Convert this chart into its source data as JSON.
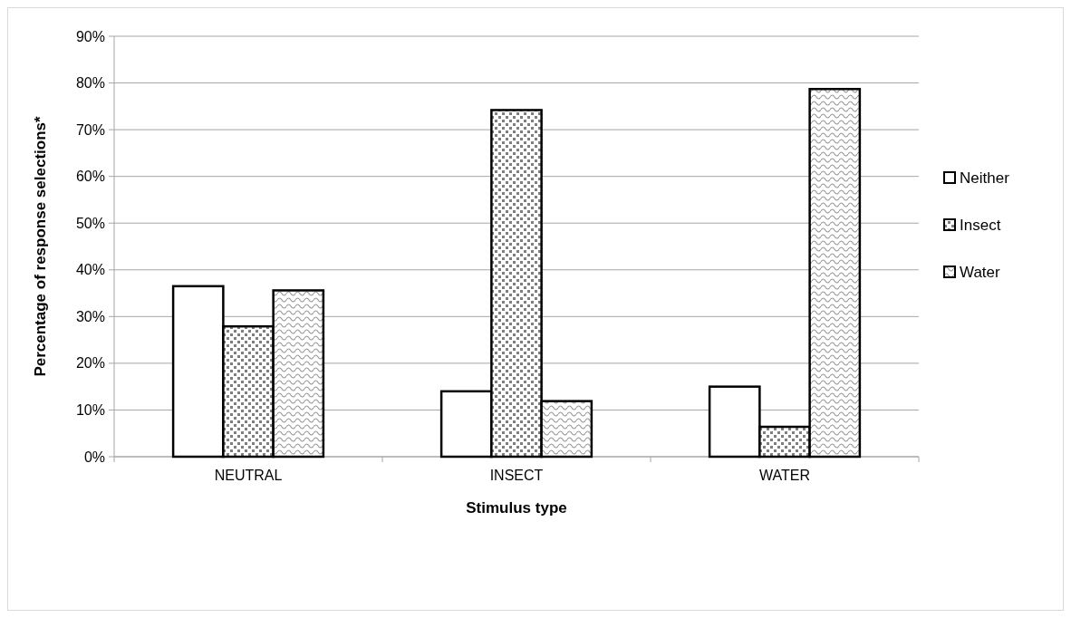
{
  "chart_data": {
    "type": "bar",
    "xlabel": "Stimulus type",
    "ylabel": "Percentage of response selections*",
    "categories": [
      "NEUTRAL",
      "INSECT",
      "WATER"
    ],
    "series": [
      {
        "name": "Neither",
        "color": "#ffffff",
        "values": [
          36.5,
          14.0,
          15.0
        ]
      },
      {
        "name": "Insect",
        "color": "#000000",
        "values": [
          27.9,
          74.2,
          6.4
        ]
      },
      {
        "name": "Water",
        "color": "#000000",
        "values": [
          35.6,
          11.9,
          78.7
        ]
      }
    ],
    "ylim": [
      0,
      90
    ],
    "yticks": [
      {
        "value": 0,
        "label": "0%"
      },
      {
        "value": 10,
        "label": "10%"
      },
      {
        "value": 20,
        "label": "20%"
      },
      {
        "value": 30,
        "label": "30%"
      },
      {
        "value": 40,
        "label": "40%"
      },
      {
        "value": 50,
        "label": "50%"
      },
      {
        "value": 60,
        "label": "60%"
      },
      {
        "value": 70,
        "label": "70%"
      },
      {
        "value": 80,
        "label": "80%"
      },
      {
        "value": 90,
        "label": "90%"
      }
    ],
    "grid": "y",
    "legend": "right"
  }
}
